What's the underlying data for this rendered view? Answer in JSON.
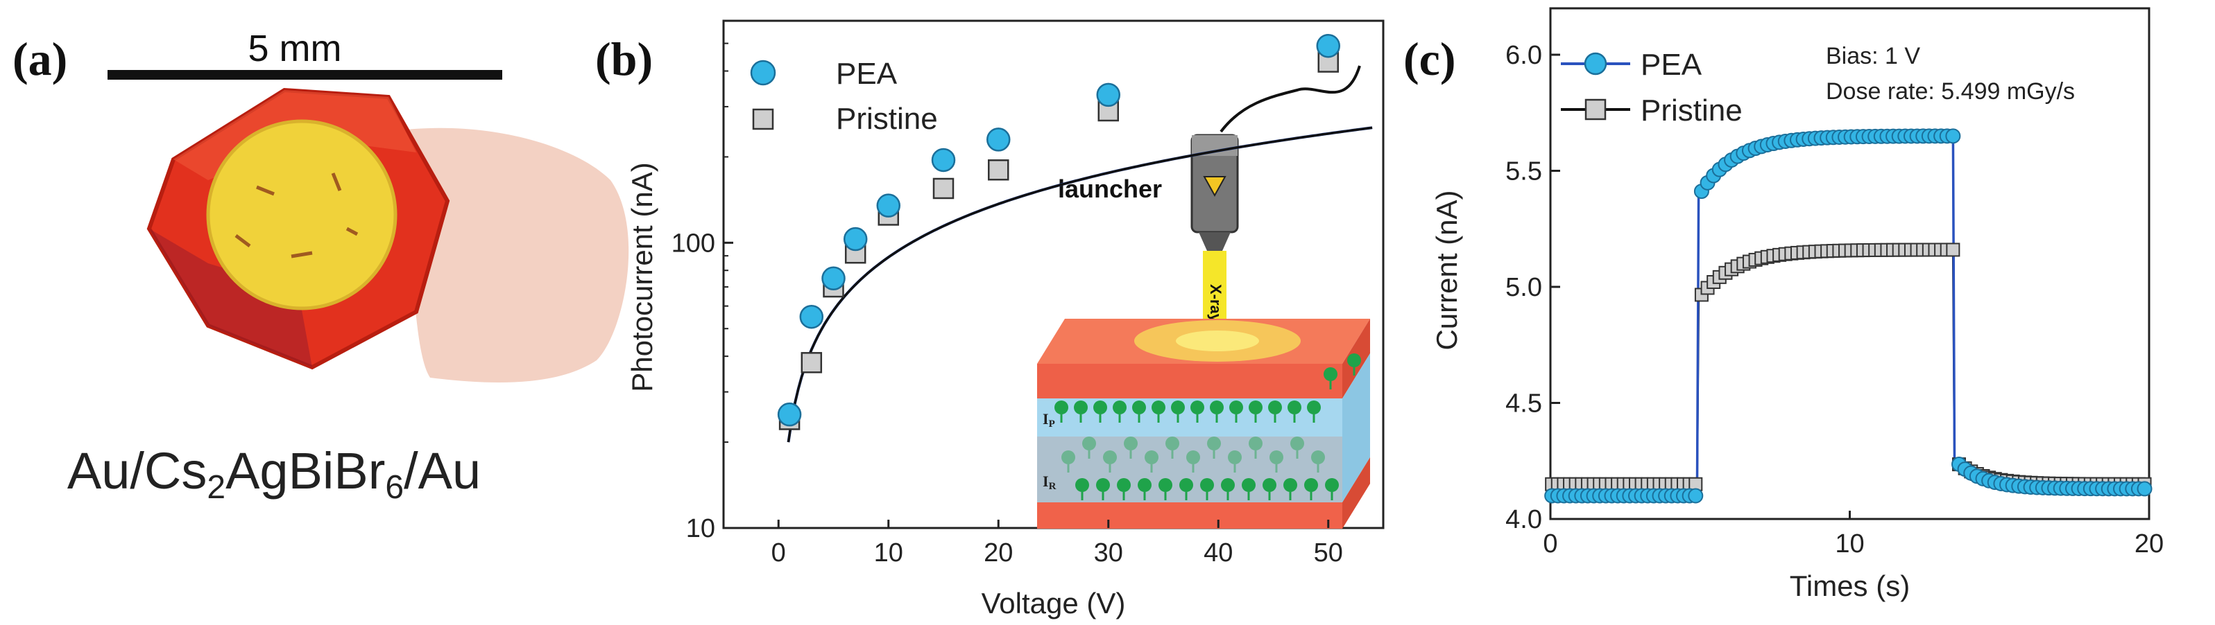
{
  "panel_a": {
    "label": "(a)",
    "scale_bar_label": "5 mm",
    "caption_prefix": "Au/Cs",
    "caption_sub1": "2",
    "caption_mid": "AgBiBr",
    "caption_sub2": "6",
    "caption_suffix": "/Au"
  },
  "panel_b": {
    "label": "(b)",
    "inset_launcher": "launcher",
    "inset_xray": "X-ray",
    "inset_ip": "I",
    "inset_ip_sub": "P",
    "inset_ir": "I",
    "inset_ir_sub": "R"
  },
  "panel_c": {
    "label": "(c)",
    "bias_text": "Bias: 1 V",
    "dose_text": "Dose rate: 5.499 mGy/s"
  },
  "colors": {
    "pea_marker": "#33b5e5",
    "pea_line": "#2a52be",
    "pristine_marker": "#cfcfcf",
    "pristine_line": "#111111",
    "crystal": "#e2311e",
    "electrode": "#f0d23a"
  },
  "chart_data": [
    {
      "type": "scatter",
      "title": "",
      "xlabel": "Voltage (V)",
      "ylabel": "Photocurrent (nA)",
      "xlim": [
        -5,
        55
      ],
      "ylim": [
        10,
        600
      ],
      "yscale": "log",
      "xticks": [
        0,
        10,
        20,
        30,
        40,
        50
      ],
      "yticks": [
        10,
        100
      ],
      "legend_position": "top-left",
      "series": [
        {
          "name": "PEA",
          "x": [
            1,
            3,
            5,
            7,
            10,
            15,
            20,
            30,
            50
          ],
          "y": [
            25,
            55,
            75,
            103,
            135,
            195,
            230,
            330,
            490
          ]
        },
        {
          "name": "Pristine",
          "x": [
            1,
            3,
            5,
            7,
            10,
            15,
            20,
            30,
            50
          ],
          "y": [
            24,
            38,
            70,
            92,
            125,
            155,
            180,
            290,
            430
          ]
        }
      ]
    },
    {
      "type": "line",
      "title": "",
      "xlabel": "Times (s)",
      "ylabel": "Current (nA)",
      "xlim": [
        0,
        20
      ],
      "ylim": [
        4.0,
        6.2
      ],
      "xticks": [
        0,
        10,
        20
      ],
      "yticks": [
        4.0,
        4.5,
        5.0,
        5.5,
        6.0
      ],
      "legend_position": "top-left",
      "series": [
        {
          "name": "PEA",
          "x_on": 4.9,
          "x_off": 13.5,
          "baseline": 4.1,
          "plateau": 5.65,
          "jump": 5.38,
          "tail_end": 4.13
        },
        {
          "name": "Pristine",
          "x_on": 4.9,
          "x_off": 13.5,
          "baseline": 4.15,
          "plateau": 5.16,
          "jump": 4.94,
          "tail_end": 4.15
        }
      ]
    }
  ]
}
